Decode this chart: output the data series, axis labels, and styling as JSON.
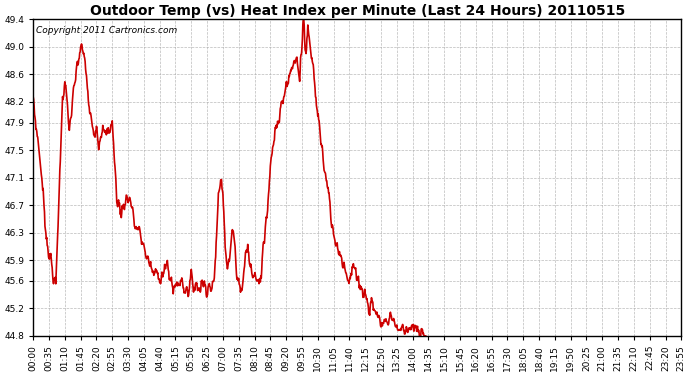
{
  "title": "Outdoor Temp (vs) Heat Index per Minute (Last 24 Hours) 20110515",
  "copyright_text": "Copyright 2011 Cartronics.com",
  "line_color": "#cc0000",
  "background_color": "#ffffff",
  "grid_color": "#aaaaaa",
  "ylim": [
    44.8,
    49.4
  ],
  "yticks": [
    44.8,
    45.2,
    45.6,
    45.9,
    46.3,
    46.7,
    47.1,
    47.5,
    47.9,
    48.2,
    48.6,
    49.0,
    49.4
  ],
  "xtick_labels": [
    "00:00",
    "00:35",
    "01:10",
    "01:45",
    "02:20",
    "02:55",
    "03:30",
    "04:05",
    "04:40",
    "05:15",
    "05:50",
    "06:25",
    "07:00",
    "07:35",
    "08:10",
    "08:45",
    "09:20",
    "09:55",
    "10:30",
    "11:05",
    "11:40",
    "12:15",
    "12:50",
    "13:25",
    "14:00",
    "14:35",
    "15:10",
    "15:45",
    "16:20",
    "16:55",
    "17:30",
    "18:05",
    "18:40",
    "19:15",
    "19:50",
    "20:25",
    "21:00",
    "21:35",
    "22:10",
    "22:45",
    "23:20",
    "23:55"
  ],
  "title_fontsize": 10,
  "copyright_fontsize": 6.5,
  "tick_fontsize": 6.5,
  "line_width": 1.2
}
